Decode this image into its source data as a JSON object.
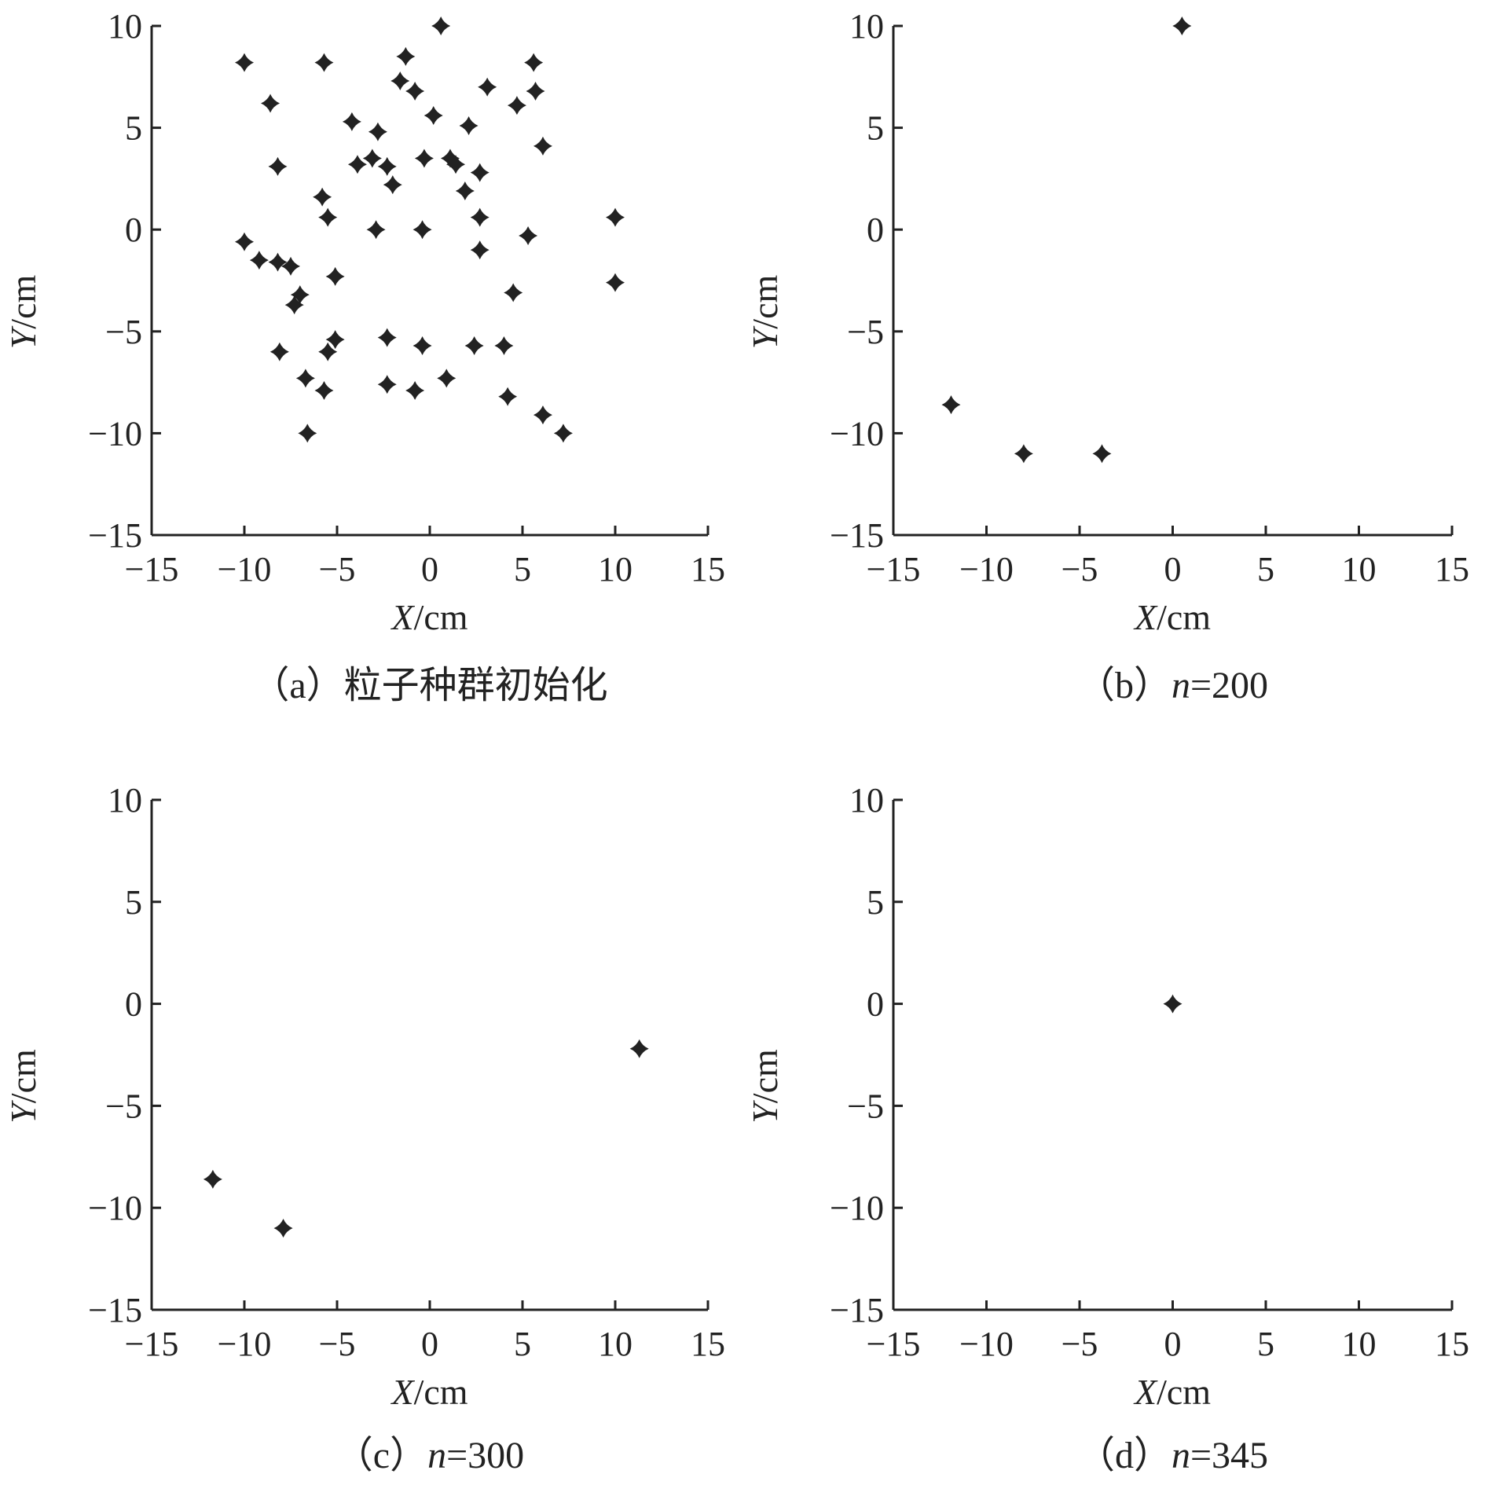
{
  "chart_data": [
    {
      "type": "scatter",
      "caption": "（a）粒子种群初始化",
      "xlabel": "X/cm",
      "ylabel": "Y/cm",
      "xlim": [
        -15,
        15
      ],
      "ylim": [
        -15,
        10
      ],
      "xticks": [
        "−15",
        "−10",
        "−5",
        "0",
        "5",
        "10",
        "15"
      ],
      "yticks": [
        "10",
        "5",
        "0",
        "−5",
        "−10",
        "−15"
      ],
      "marker": "four-point-star",
      "marker_color": "#222222",
      "points": [
        [
          -10,
          8.2
        ],
        [
          -5.7,
          8.2
        ],
        [
          0.6,
          10
        ],
        [
          -1.3,
          8.5
        ],
        [
          5.6,
          8.2
        ],
        [
          -8.6,
          6.2
        ],
        [
          -1.6,
          7.3
        ],
        [
          -0.8,
          6.8
        ],
        [
          3.1,
          7
        ],
        [
          5.7,
          6.8
        ],
        [
          4.7,
          6.1
        ],
        [
          -4.2,
          5.3
        ],
        [
          -2.8,
          4.8
        ],
        [
          0.2,
          5.6
        ],
        [
          2.1,
          5.1
        ],
        [
          6.1,
          4.1
        ],
        [
          -8.2,
          3.1
        ],
        [
          -3.9,
          3.2
        ],
        [
          -3.1,
          3.5
        ],
        [
          -2.3,
          3.1
        ],
        [
          -0.3,
          3.5
        ],
        [
          1.1,
          3.5
        ],
        [
          1.4,
          3.2
        ],
        [
          2.7,
          2.8
        ],
        [
          -2,
          2.2
        ],
        [
          1.9,
          1.9
        ],
        [
          -5.8,
          1.6
        ],
        [
          -5.5,
          0.6
        ],
        [
          2.7,
          0.6
        ],
        [
          10,
          0.6
        ],
        [
          -2.9,
          0
        ],
        [
          -0.4,
          0
        ],
        [
          -10,
          -0.6
        ],
        [
          5.3,
          -0.3
        ],
        [
          2.7,
          -1
        ],
        [
          -9.2,
          -1.5
        ],
        [
          -8.2,
          -1.6
        ],
        [
          -7.5,
          -1.8
        ],
        [
          -5.1,
          -2.3
        ],
        [
          10,
          -2.6
        ],
        [
          -7,
          -3.2
        ],
        [
          -7.3,
          -3.7
        ],
        [
          4.5,
          -3.1
        ],
        [
          -5.1,
          -5.4
        ],
        [
          -2.3,
          -5.3
        ],
        [
          -0.4,
          -5.7
        ],
        [
          2.4,
          -5.7
        ],
        [
          4,
          -5.7
        ],
        [
          -8.1,
          -6
        ],
        [
          -5.5,
          -6
        ],
        [
          -6.7,
          -7.3
        ],
        [
          -5.7,
          -7.9
        ],
        [
          -2.3,
          -7.6
        ],
        [
          -0.8,
          -7.9
        ],
        [
          0.9,
          -7.3
        ],
        [
          4.2,
          -8.2
        ],
        [
          6.1,
          -9.1
        ],
        [
          -6.6,
          -10
        ],
        [
          7.2,
          -10
        ]
      ]
    },
    {
      "type": "scatter",
      "caption_prefix": "（b）",
      "caption_var": "n",
      "caption_value": "=200",
      "xlabel": "X/cm",
      "ylabel": "Y/cm",
      "xlim": [
        -15,
        15
      ],
      "ylim": [
        -15,
        10
      ],
      "xticks": [
        "−15",
        "−10",
        "−5",
        "0",
        "5",
        "10",
        "15"
      ],
      "yticks": [
        "10",
        "5",
        "0",
        "−5",
        "−10",
        "−15"
      ],
      "marker": "four-point-star",
      "marker_color": "#222222",
      "points": [
        [
          0.5,
          10
        ],
        [
          -11.9,
          -8.6
        ],
        [
          -8,
          -11
        ],
        [
          -3.8,
          -11
        ]
      ]
    },
    {
      "type": "scatter",
      "caption_prefix": "（c）",
      "caption_var": "n",
      "caption_value": "=300",
      "xlabel": "X/cm",
      "ylabel": "Y/cm",
      "xlim": [
        -15,
        15
      ],
      "ylim": [
        -15,
        10
      ],
      "xticks": [
        "−15",
        "−10",
        "−5",
        "0",
        "5",
        "10",
        "15"
      ],
      "yticks": [
        "10",
        "5",
        "0",
        "−5",
        "−10",
        "−15"
      ],
      "marker": "four-point-star",
      "marker_color": "#222222",
      "points": [
        [
          11.3,
          -2.2
        ],
        [
          -11.7,
          -8.6
        ],
        [
          -7.9,
          -11
        ]
      ]
    },
    {
      "type": "scatter",
      "caption_prefix": "（d）",
      "caption_var": "n",
      "caption_value": "=345",
      "xlabel": "X/cm",
      "ylabel": "Y/cm",
      "xlim": [
        -15,
        15
      ],
      "ylim": [
        -15,
        10
      ],
      "xticks": [
        "−15",
        "−10",
        "−5",
        "0",
        "5",
        "10",
        "15"
      ],
      "yticks": [
        "10",
        "5",
        "0",
        "−5",
        "−10",
        "−15"
      ],
      "marker": "four-point-star",
      "marker_color": "#222222",
      "points": [
        [
          0,
          0
        ]
      ]
    }
  ]
}
